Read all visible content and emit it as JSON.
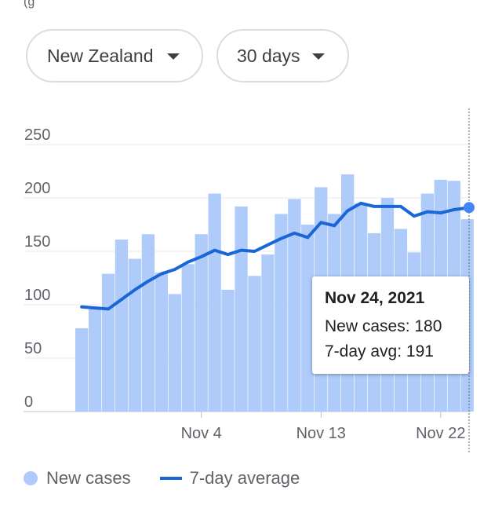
{
  "header_fragment": "(g",
  "filters": {
    "region": "New Zealand",
    "range": "30 days"
  },
  "tooltip": {
    "date": "Nov 24, 2021",
    "cases_line": "New cases: 180",
    "avg_line": "7-day avg: 191"
  },
  "legend": {
    "cases": "New cases",
    "average": "7-day average"
  },
  "colors": {
    "bar": "#aecbfa",
    "line": "#1a66d6",
    "grid": "#e8eaed"
  },
  "chart_data": {
    "type": "bar",
    "x": [
      "Oct 26",
      "Oct 27",
      "Oct 28",
      "Oct 29",
      "Oct 30",
      "Oct 31",
      "Nov 1",
      "Nov 2",
      "Nov 3",
      "Nov 4",
      "Nov 5",
      "Nov 6",
      "Nov 7",
      "Nov 8",
      "Nov 9",
      "Nov 10",
      "Nov 11",
      "Nov 12",
      "Nov 13",
      "Nov 14",
      "Nov 15",
      "Nov 16",
      "Nov 17",
      "Nov 18",
      "Nov 19",
      "Nov 20",
      "Nov 21",
      "Nov 22",
      "Nov 23",
      "Nov 24"
    ],
    "series": [
      {
        "name": "New cases",
        "type": "bar",
        "values": [
          78,
          98,
          129,
          161,
          143,
          166,
          130,
          110,
          138,
          166,
          204,
          114,
          192,
          127,
          147,
          185,
          199,
          175,
          210,
          185,
          222,
          195,
          167,
          200,
          171,
          149,
          204,
          217,
          216,
          180
        ]
      },
      {
        "name": "7-day average",
        "type": "line",
        "values": [
          98,
          97,
          96,
          105,
          114,
          122,
          129,
          133,
          140,
          145,
          151,
          147,
          151,
          150,
          156,
          162,
          167,
          163,
          177,
          174,
          188,
          195,
          192,
          192,
          192,
          183,
          187,
          186,
          189,
          191
        ]
      }
    ],
    "xticks": [
      "Nov 4",
      "Nov 13",
      "Nov 22"
    ],
    "yticks": [
      0,
      50,
      100,
      150,
      200,
      250
    ],
    "ylim": [
      0,
      250
    ],
    "grid": true,
    "legend_position": "bottom-left",
    "highlighted": "Nov 24"
  }
}
